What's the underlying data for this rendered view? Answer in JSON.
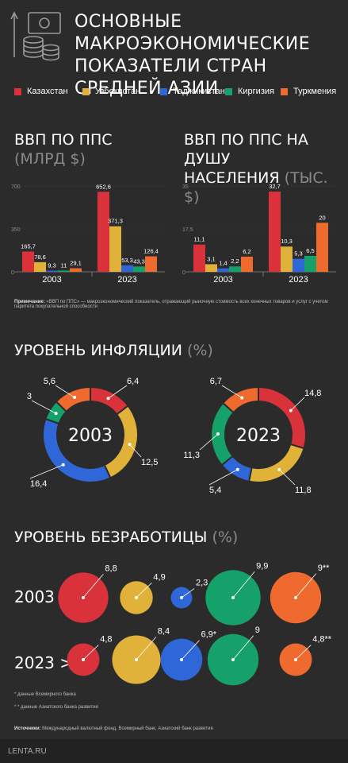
{
  "title_line1": "ОСНОВНЫЕ МАКРОЭКОНОМИЧЕСКИЕ",
  "title_line2": "ПОКАЗАТЕЛИ СТРАН СРЕДНЕЙ АЗИИ",
  "colors": {
    "kazakhstan": "#d9323a",
    "uzbekistan": "#e0b23a",
    "tajikistan": "#2f66d8",
    "kyrgyzstan": "#16a06a",
    "turkmenistan": "#ee6a2e"
  },
  "legend": [
    {
      "label": "Казахстан",
      "color": "#d9323a"
    },
    {
      "label": "Узбекистан",
      "color": "#e0b23a"
    },
    {
      "label": "Таджикистан",
      "color": "#2f66d8"
    },
    {
      "label": "Киргизия",
      "color": "#16a06a"
    },
    {
      "label": "Туркмения",
      "color": "#ee6a2e"
    }
  ],
  "gdp": {
    "title1": "ВВП ПО ППС",
    "unit": "(МЛРД $)",
    "note_bold": "Примечание:",
    "note_text": " «ВВП по ППС» — макроэкономический показатель, отражающий рыночную стоимость всех конечных товаров и услуг с учетом паритета покупательной способности"
  },
  "gdp_pc": {
    "title1": "ВВП ПО ППС НА ДУШУ",
    "title2": "НАСЕЛЕНИЯ",
    "unit": "(ТЫС. $)"
  },
  "inflation": {
    "title": "УРОВЕНЬ ИНФЛЯЦИИ",
    "unit": "(%)"
  },
  "unemployment": {
    "title": "УРОВЕНЬ БЕЗРАБОТИЦЫ",
    "unit": "(%)",
    "row_labels": [
      "2003 >",
      "2023 >"
    ],
    "footnote1": "* данные Всемирного банка",
    "footnote2": "* * данные Азиатского банка развития"
  },
  "sources": {
    "bold": "Источники:",
    "text": " Международный валютный фонд, Всемирный банк, Азиатский банк развития"
  },
  "footer": {
    "brand": "LENTA.RU"
  },
  "chart_data": [
    {
      "type": "bar",
      "title": "ВВП ПО ППС (МЛРД $)",
      "categories": [
        "2003",
        "2023"
      ],
      "ylim": [
        0,
        700
      ],
      "yticks": [
        "0",
        "350",
        "700"
      ],
      "series": [
        {
          "name": "Казахстан",
          "values": [
            165.7,
            652.6
          ],
          "labels": [
            "165,7",
            "652,6"
          ]
        },
        {
          "name": "Узбекистан",
          "values": [
            78.6,
            371.3
          ],
          "labels": [
            "78,6",
            "371,3"
          ]
        },
        {
          "name": "Таджикистан",
          "values": [
            9.3,
            53.3
          ],
          "labels": [
            "9,3",
            "53,3"
          ]
        },
        {
          "name": "Киргизия",
          "values": [
            11,
            43.3
          ],
          "labels": [
            "11",
            "43,3"
          ]
        },
        {
          "name": "Туркмения",
          "values": [
            29.1,
            126.4
          ],
          "labels": [
            "29,1",
            "126,4"
          ]
        }
      ]
    },
    {
      "type": "bar",
      "title": "ВВП ПО ППС НА ДУШУ НАСЕЛЕНИЯ (ТЫС. $)",
      "categories": [
        "2003",
        "2023"
      ],
      "ylim": [
        0,
        35
      ],
      "yticks": [
        "0",
        "17,5",
        "35"
      ],
      "series": [
        {
          "name": "Казахстан",
          "values": [
            11.1,
            32.7
          ],
          "labels": [
            "11,1",
            "32,7"
          ]
        },
        {
          "name": "Узбекистан",
          "values": [
            3.1,
            10.3
          ],
          "labels": [
            "3,1",
            "10,3"
          ]
        },
        {
          "name": "Таджикистан",
          "values": [
            1.4,
            5.3
          ],
          "labels": [
            "1,4",
            "5,3"
          ]
        },
        {
          "name": "Киргизия",
          "values": [
            2.2,
            6.5
          ],
          "labels": [
            "2,2",
            "6,5"
          ]
        },
        {
          "name": "Туркмения",
          "values": [
            6.2,
            20
          ],
          "labels": [
            "6,2",
            "20"
          ]
        }
      ]
    },
    {
      "type": "pie",
      "title": "2003",
      "slices": [
        {
          "name": "Казахстан",
          "value": 6.4,
          "label": "6,4"
        },
        {
          "name": "Узбекистан",
          "value": 12.5,
          "label": "12,5"
        },
        {
          "name": "Таджикистан",
          "value": 16.4,
          "label": "16,4"
        },
        {
          "name": "Киргизия",
          "value": 3,
          "label": "3"
        },
        {
          "name": "Туркмения",
          "value": 5.6,
          "label": "5,6"
        }
      ]
    },
    {
      "type": "pie",
      "title": "2023",
      "slices": [
        {
          "name": "Казахстан",
          "value": 14.8,
          "label": "14,8"
        },
        {
          "name": "Узбекистан",
          "value": 11.8,
          "label": "11,8"
        },
        {
          "name": "Таджикистан",
          "value": 5.4,
          "label": "5,4"
        },
        {
          "name": "Киргизия",
          "value": 11.3,
          "label": "11,3"
        },
        {
          "name": "Туркмения",
          "value": 6.7,
          "label": "6,7"
        }
      ]
    },
    {
      "type": "scatter",
      "title": "УРОВЕНЬ БЕЗРАБОТИЦЫ (%)",
      "rows": [
        "2003",
        "2023"
      ],
      "series": [
        {
          "name": "Казахстан",
          "values": [
            8.8,
            4.8
          ],
          "labels": [
            "8,8",
            "4,8"
          ]
        },
        {
          "name": "Узбекистан",
          "values": [
            4.9,
            8.4
          ],
          "labels": [
            "4,9",
            "8,4"
          ]
        },
        {
          "name": "Таджикистан",
          "values": [
            2.3,
            6.9
          ],
          "labels": [
            "2,3",
            "6,9*"
          ]
        },
        {
          "name": "Киргизия",
          "values": [
            9.9,
            9
          ],
          "labels": [
            "9,9",
            "9"
          ]
        },
        {
          "name": "Туркмения",
          "values": [
            9,
            4.8
          ],
          "labels": [
            "9**",
            "4,8**"
          ]
        }
      ]
    }
  ]
}
